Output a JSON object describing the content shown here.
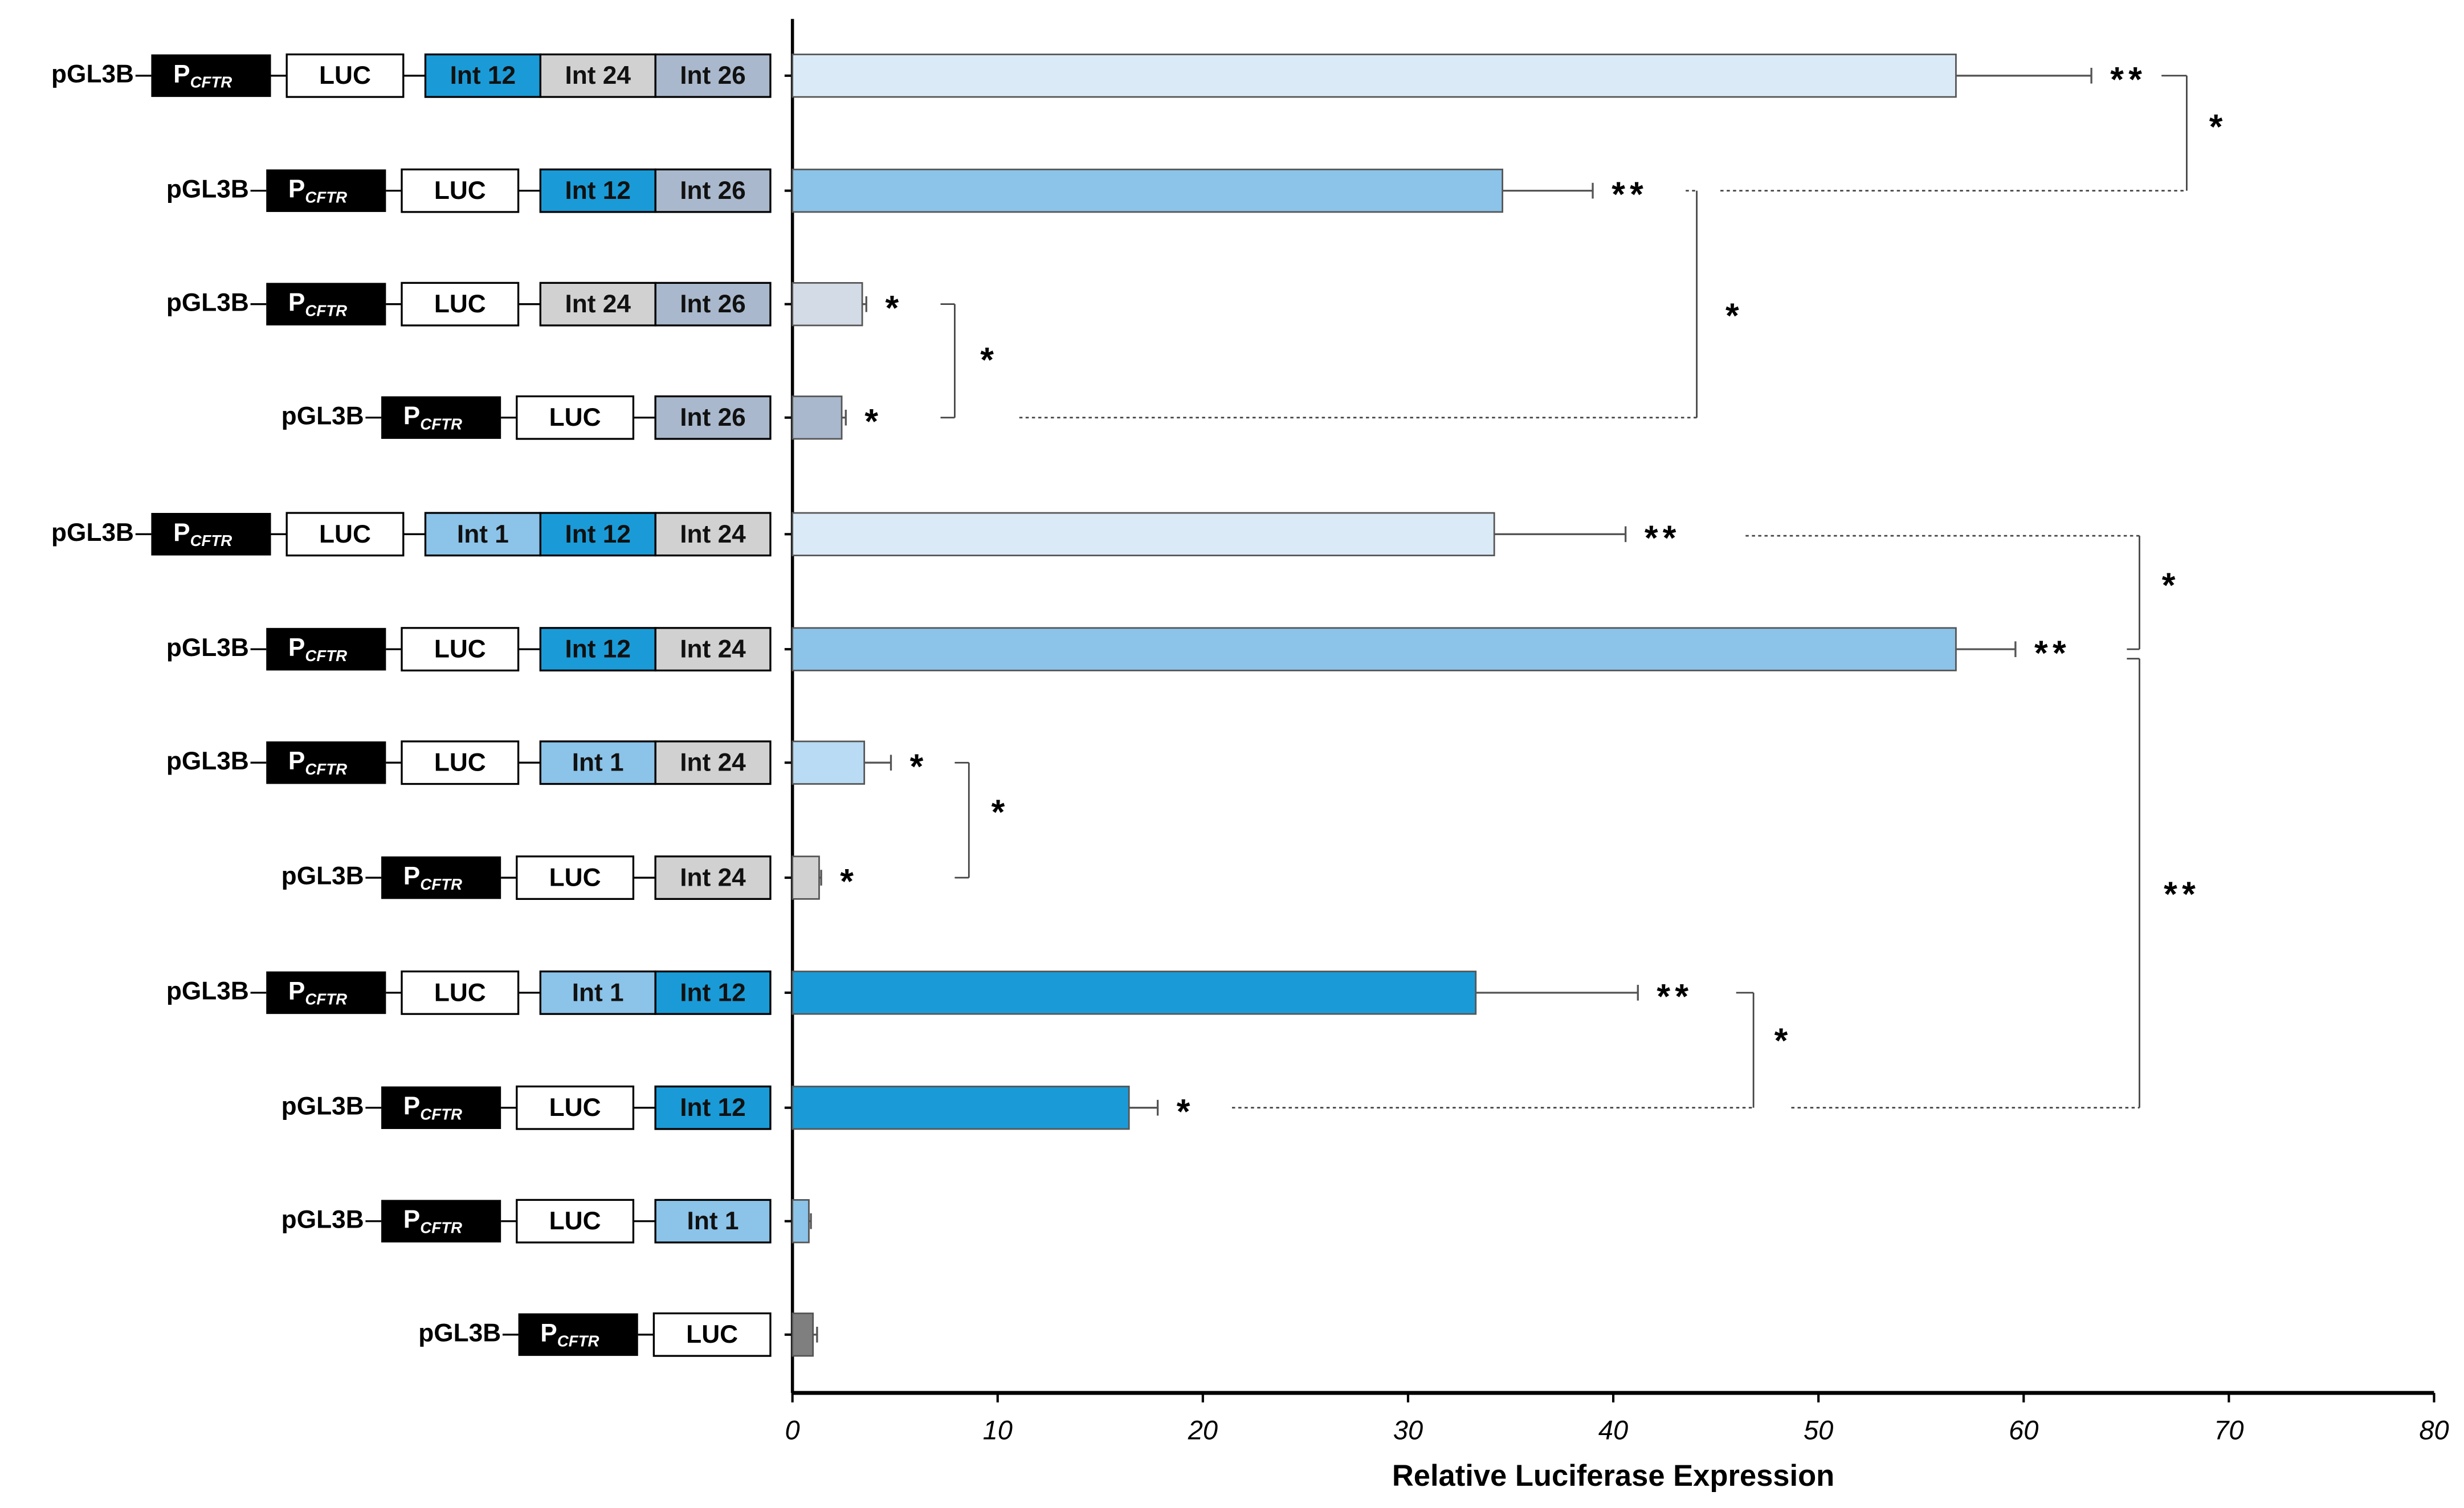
{
  "chart_data": {
    "type": "bar",
    "orientation": "horizontal",
    "x_label": "Relative Luciferase Expression",
    "xlim": [
      0,
      80
    ],
    "xticks": [
      0,
      10,
      20,
      30,
      40,
      50,
      60,
      70,
      80
    ],
    "constructs": [
      {
        "vector": "pGL3B",
        "promoter": "P",
        "promoter_sub": "CFTR",
        "reporter": "LUC",
        "introns": [
          {
            "label": "Int 12",
            "color": "#1a9bd7"
          },
          {
            "label": "Int 24",
            "color": "#d1d1d1"
          },
          {
            "label": "Int 26",
            "color": "#a9b8cc"
          }
        ]
      },
      {
        "vector": "pGL3B",
        "promoter": "P",
        "promoter_sub": "CFTR",
        "reporter": "LUC",
        "introns": [
          {
            "label": "Int 12",
            "color": "#1a9bd7"
          },
          {
            "label": "Int 26",
            "color": "#a9b8cc"
          }
        ]
      },
      {
        "vector": "pGL3B",
        "promoter": "P",
        "promoter_sub": "CFTR",
        "reporter": "LUC",
        "introns": [
          {
            "label": "Int 24",
            "color": "#d1d1d1"
          },
          {
            "label": "Int 26",
            "color": "#a9b8cc"
          }
        ]
      },
      {
        "vector": "pGL3B",
        "promoter": "P",
        "promoter_sub": "CFTR",
        "reporter": "LUC",
        "introns": [
          {
            "label": "Int 26",
            "color": "#a9b8cc"
          }
        ]
      },
      {
        "vector": "pGL3B",
        "promoter": "P",
        "promoter_sub": "CFTR",
        "reporter": "LUC",
        "introns": [
          {
            "label": "Int 1",
            "color": "#8cc3e8"
          },
          {
            "label": "Int 12",
            "color": "#1a9bd7"
          },
          {
            "label": "Int 24",
            "color": "#d1d1d1"
          }
        ]
      },
      {
        "vector": "pGL3B",
        "promoter": "P",
        "promoter_sub": "CFTR",
        "reporter": "LUC",
        "introns": [
          {
            "label": "Int 12",
            "color": "#1a9bd7"
          },
          {
            "label": "Int 24",
            "color": "#d1d1d1"
          }
        ]
      },
      {
        "vector": "pGL3B",
        "promoter": "P",
        "promoter_sub": "CFTR",
        "reporter": "LUC",
        "introns": [
          {
            "label": "Int 1",
            "color": "#8cc3e8"
          },
          {
            "label": "Int 24",
            "color": "#d1d1d1"
          }
        ]
      },
      {
        "vector": "pGL3B",
        "promoter": "P",
        "promoter_sub": "CFTR",
        "reporter": "LUC",
        "introns": [
          {
            "label": "Int 24",
            "color": "#d1d1d1"
          }
        ]
      },
      {
        "vector": "pGL3B",
        "promoter": "P",
        "promoter_sub": "CFTR",
        "reporter": "LUC",
        "introns": [
          {
            "label": "Int 1",
            "color": "#8cc3e8"
          },
          {
            "label": "Int 12",
            "color": "#1a9bd7"
          }
        ]
      },
      {
        "vector": "pGL3B",
        "promoter": "P",
        "promoter_sub": "CFTR",
        "reporter": "LUC",
        "introns": [
          {
            "label": "Int 12",
            "color": "#1a9bd7"
          }
        ]
      },
      {
        "vector": "pGL3B",
        "promoter": "P",
        "promoter_sub": "CFTR",
        "reporter": "LUC",
        "introns": [
          {
            "label": "Int 1",
            "color": "#8cc3e8"
          }
        ]
      },
      {
        "vector": "pGL3B",
        "promoter": "P",
        "promoter_sub": "CFTR",
        "reporter": "LUC",
        "introns": []
      }
    ],
    "values": [
      56.7,
      34.6,
      3.4,
      2.4,
      34.2,
      56.7,
      3.5,
      1.3,
      33.3,
      16.4,
      0.8,
      1.0
    ],
    "errors": [
      6.6,
      4.4,
      0.2,
      0.2,
      6.4,
      2.9,
      1.3,
      0.1,
      7.9,
      1.4,
      0.1,
      0.2
    ],
    "colors": [
      "#dbeaf7",
      "#8cc3e8",
      "#d3dbe6",
      "#a9b8cc",
      "#dbeaf7",
      "#8cc3e8",
      "#b9dbf3",
      "#d1d1d1",
      "#1a9bd7",
      "#1a9bd7",
      "#8cc3e8",
      "#7f7f7f"
    ],
    "significance": [
      "**",
      "**",
      "*",
      "*",
      "**",
      "**",
      "*",
      "*",
      "**",
      "*",
      null,
      null
    ],
    "comparisons": [
      "*",
      "*",
      "*",
      "*",
      "**",
      "*",
      "*"
    ]
  }
}
